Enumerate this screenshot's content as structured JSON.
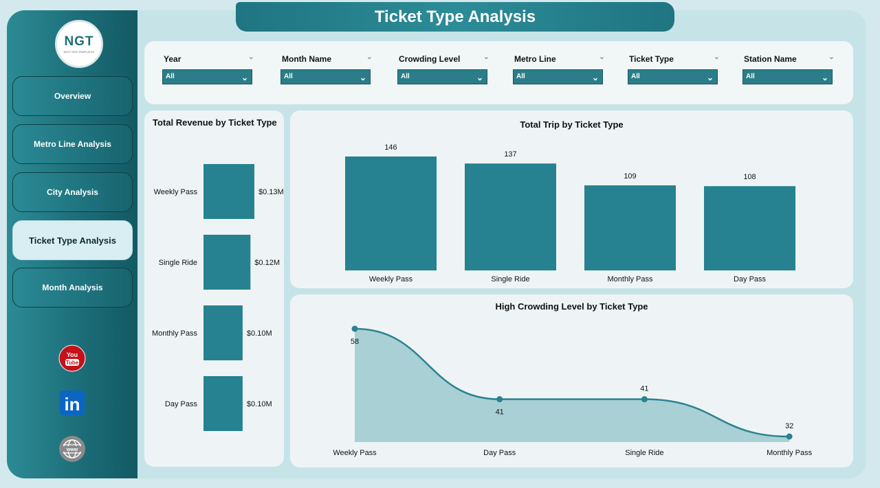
{
  "app": {
    "title": "Ticket Type Analysis",
    "logo_text": "NGT",
    "logo_subtext": "NEXT GEN TEMPLATES"
  },
  "sidebar": {
    "items": [
      {
        "label": "Overview",
        "active": false
      },
      {
        "label": "Metro Line Analysis",
        "active": false
      },
      {
        "label": "City Analysis",
        "active": false
      },
      {
        "label": "Ticket Type Analysis",
        "active": true
      },
      {
        "label": "Month Analysis",
        "active": false
      }
    ],
    "social": [
      {
        "icon": "youtube-icon",
        "text": "You Tube",
        "color": "#c4121a"
      },
      {
        "icon": "linkedin-icon",
        "text": "in",
        "color": "#0a66c2"
      },
      {
        "icon": "web-icon",
        "text": "www",
        "color": "#8a8a8a"
      }
    ]
  },
  "filters": [
    {
      "label": "Year",
      "value": "All"
    },
    {
      "label": "Month Name",
      "value": "All"
    },
    {
      "label": "Crowding Level",
      "value": "All"
    },
    {
      "label": "Metro Line",
      "value": "All"
    },
    {
      "label": "Ticket Type",
      "value": "All"
    },
    {
      "label": "Station Name",
      "value": "All"
    }
  ],
  "colors": {
    "accent": "#268290",
    "area_fill": "#a3cdd3",
    "line": "#2b8290"
  },
  "chart_data": [
    {
      "type": "bar",
      "orientation": "horizontal",
      "title": "Total Revenue by Ticket Type",
      "categories": [
        "Weekly Pass",
        "Single Ride",
        "Monthly Pass",
        "Day Pass"
      ],
      "values": [
        0.13,
        0.12,
        0.1,
        0.1
      ],
      "value_labels": [
        "$0.13M",
        "$0.12M",
        "$0.10M",
        "$0.10M"
      ],
      "unit": "$M"
    },
    {
      "type": "bar",
      "title": "Total Trip by Ticket Type",
      "categories": [
        "Weekly Pass",
        "Single Ride",
        "Monthly Pass",
        "Day Pass"
      ],
      "values": [
        146,
        137,
        109,
        108
      ]
    },
    {
      "type": "area",
      "title": "High Crowding Level by Ticket Type",
      "categories": [
        "Weekly Pass",
        "Day Pass",
        "Single Ride",
        "Monthly Pass"
      ],
      "values": [
        58,
        41,
        41,
        32
      ]
    }
  ]
}
